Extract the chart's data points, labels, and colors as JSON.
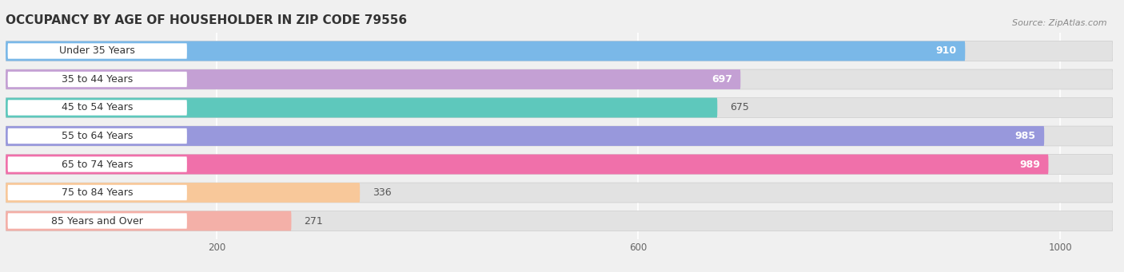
{
  "title": "OCCUPANCY BY AGE OF HOUSEHOLDER IN ZIP CODE 79556",
  "source": "Source: ZipAtlas.com",
  "categories": [
    "Under 35 Years",
    "35 to 44 Years",
    "45 to 54 Years",
    "55 to 64 Years",
    "65 to 74 Years",
    "75 to 84 Years",
    "85 Years and Over"
  ],
  "values": [
    910,
    697,
    675,
    985,
    989,
    336,
    271
  ],
  "bar_colors": [
    "#7ab8e8",
    "#c4a0d4",
    "#5ec8bc",
    "#9898dc",
    "#f070aa",
    "#f8c89a",
    "#f4b0a8"
  ],
  "value_white": [
    true,
    true,
    false,
    true,
    true,
    false,
    false
  ],
  "xlim_max": 1050,
  "xticks": [
    200,
    600,
    1000
  ],
  "background_color": "#f0f0f0",
  "bar_bg_color": "#e2e2e2",
  "title_fontsize": 11,
  "source_fontsize": 8,
  "label_fontsize": 9,
  "value_fontsize": 9,
  "label_pill_color": "#ffffff",
  "label_text_color": "#333333"
}
